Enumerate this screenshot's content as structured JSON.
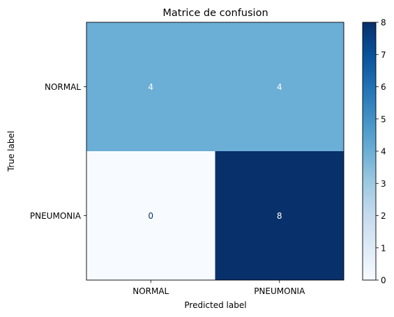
{
  "chart_data": {
    "type": "heatmap",
    "title": "Matrice de confusion",
    "xlabel": "Predicted label",
    "ylabel": "True label",
    "x_categories": [
      "NORMAL",
      "PNEUMONIA"
    ],
    "y_categories": [
      "NORMAL",
      "PNEUMONIA"
    ],
    "values": [
      [
        4,
        4
      ],
      [
        0,
        8
      ]
    ],
    "colorbar": {
      "min": 0,
      "max": 8,
      "ticks": [
        "0",
        "1",
        "2",
        "3",
        "4",
        "5",
        "6",
        "7",
        "8"
      ],
      "colormap": "Blues",
      "low_color": "#f7fbff",
      "high_color": "#08306b"
    },
    "grid": false
  }
}
